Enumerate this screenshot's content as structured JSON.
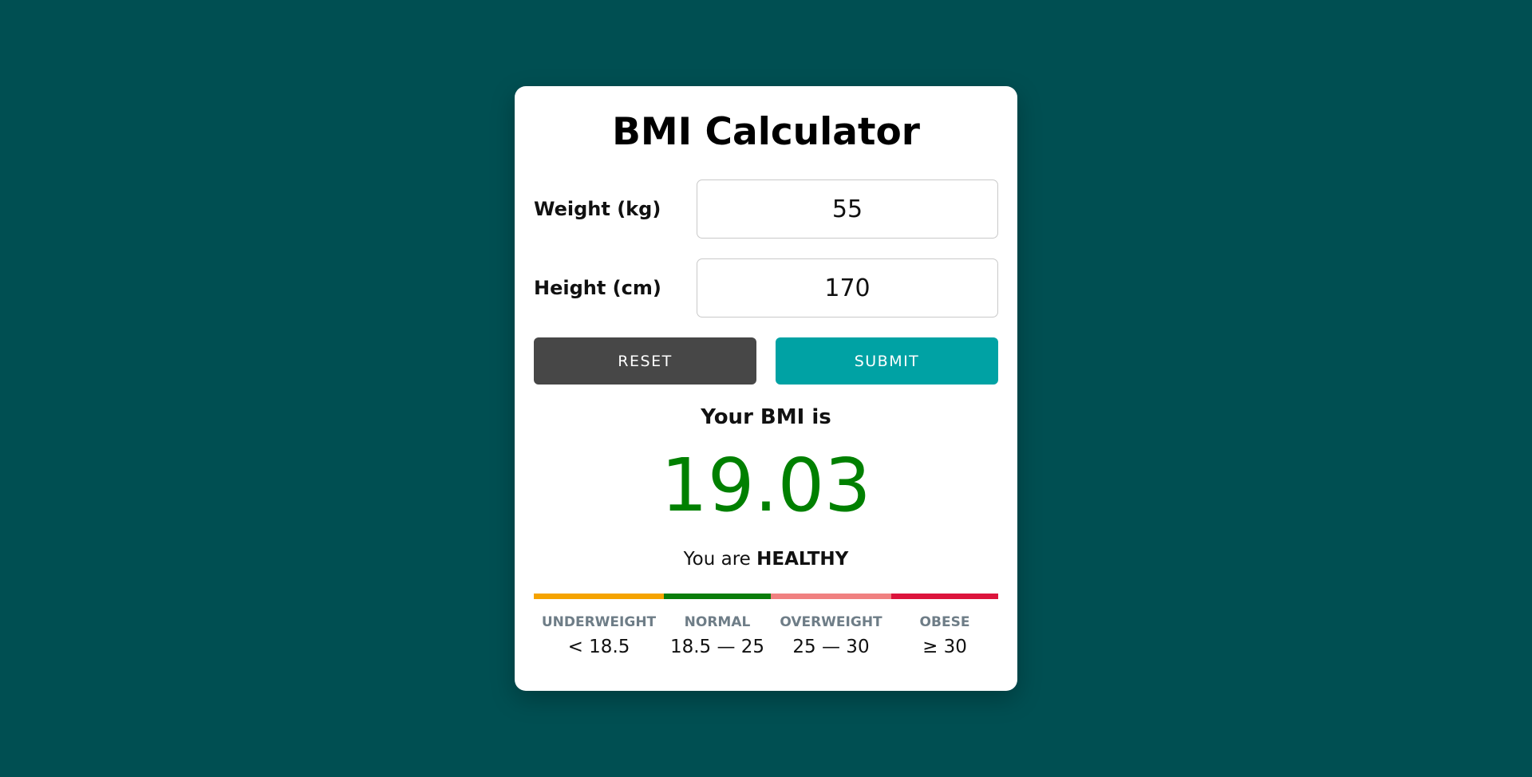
{
  "title": "BMI Calculator",
  "form": {
    "weight": {
      "label": "Weight (kg)",
      "value": "55"
    },
    "height": {
      "label": "Height (cm)",
      "value": "170"
    }
  },
  "buttons": {
    "reset": "RESET",
    "submit": "SUBMIT"
  },
  "result": {
    "label": "Your BMI is",
    "value": "19.03",
    "status_prefix": "You are",
    "status": "HEALTHY"
  },
  "scale": [
    {
      "category": "UNDERWEIGHT",
      "range": "< 18.5",
      "color": "#f5a300"
    },
    {
      "category": "NORMAL",
      "range": "18.5 — 25",
      "color": "#0a7d0a"
    },
    {
      "category": "OVERWEIGHT",
      "range": "25 — 30",
      "color": "#f08080"
    },
    {
      "category": "OBESE",
      "range": "≥ 30",
      "color": "#dc143c"
    }
  ],
  "colors": {
    "background": "#004f52",
    "accent": "#00a2a4",
    "reset_button": "#474747",
    "result": "#008000"
  }
}
